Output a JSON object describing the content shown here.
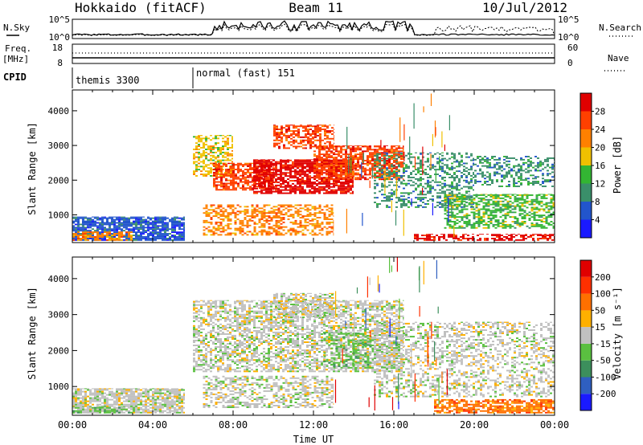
{
  "header": {
    "station": "Hokkaido (fitACF)",
    "beam": "Beam 11",
    "date": "10/Jul/2012"
  },
  "noise_panel": {
    "left_label": "N.Sky",
    "right_label": "N.Search",
    "ticks_left": [
      "10^5",
      "10^0"
    ],
    "ticks_right": [
      "10^5",
      "10^0"
    ]
  },
  "freq_panel": {
    "left_label_line1": "Freq.",
    "left_label_line2": "[MHz]",
    "right_label": "Nave",
    "ticks_left": [
      "18",
      "8"
    ],
    "ticks_right": [
      "60",
      "0"
    ]
  },
  "cpid_panel": {
    "label": "CPID",
    "segments": [
      {
        "name": "themis 3300",
        "start_hour": 0
      },
      {
        "name": "normal (fast) 151",
        "start_hour": 6
      }
    ]
  },
  "colors": {
    "power": [
      "#1a1aff",
      "#2255cc",
      "#3a8f6a",
      "#33b533",
      "#f0c000",
      "#ff8000",
      "#ff4000",
      "#e00000"
    ],
    "velocity": [
      "#1a1aff",
      "#2f5fc0",
      "#3c8f5c",
      "#5ac040",
      "#c0c0c0",
      "#ffb000",
      "#ff7000",
      "#ff3000",
      "#e00000"
    ]
  },
  "chart_data": [
    {
      "type": "heatmap",
      "name": "power",
      "ylabel": "Slant Range [km]",
      "xlabel": "",
      "xlim": [
        0,
        24
      ],
      "ylim": [
        200,
        4600
      ],
      "yticks": [
        1000,
        2000,
        3000,
        4000
      ],
      "xticks": [
        "00:00",
        "04:00",
        "08:00",
        "12:00",
        "16:00",
        "20:00",
        "00:00"
      ],
      "colorbar_label": "Power [dB]",
      "colorbar_ticks": [
        "4",
        "8",
        "12",
        "16",
        "20",
        "24",
        "28"
      ],
      "regions": [
        {
          "t0": 0.0,
          "t1": 5.6,
          "r0": 250,
          "r1": 950,
          "level": 1,
          "density": 0.8
        },
        {
          "t0": 0.0,
          "t1": 3.0,
          "r0": 250,
          "r1": 520,
          "level": 5,
          "density": 0.6
        },
        {
          "t0": 6.0,
          "t1": 8.0,
          "r0": 2100,
          "r1": 3300,
          "level": 4,
          "density": 0.5
        },
        {
          "t0": 7.0,
          "t1": 10.0,
          "r0": 1700,
          "r1": 2500,
          "level": 6,
          "density": 0.7
        },
        {
          "t0": 9.0,
          "t1": 14.0,
          "r0": 1600,
          "r1": 2600,
          "level": 7,
          "density": 0.8
        },
        {
          "t0": 12.0,
          "t1": 16.5,
          "r0": 2000,
          "r1": 3000,
          "level": 6,
          "density": 0.7
        },
        {
          "t0": 10.0,
          "t1": 13.0,
          "r0": 2900,
          "r1": 3600,
          "level": 6,
          "density": 0.6
        },
        {
          "t0": 6.5,
          "t1": 13.0,
          "r0": 400,
          "r1": 1300,
          "level": 5,
          "density": 0.5
        },
        {
          "t0": 15.0,
          "t1": 20.0,
          "r0": 1200,
          "r1": 2800,
          "level": 2,
          "density": 0.4
        },
        {
          "t0": 18.5,
          "t1": 24.0,
          "r0": 600,
          "r1": 1600,
          "level": 3,
          "density": 0.6
        },
        {
          "t0": 17.0,
          "t1": 24.0,
          "r0": 250,
          "r1": 450,
          "level": 7,
          "density": 0.6
        },
        {
          "t0": 20.0,
          "t1": 24.0,
          "r0": 1800,
          "r1": 2700,
          "level": 2,
          "density": 0.4
        }
      ]
    },
    {
      "type": "heatmap",
      "name": "velocity",
      "ylabel": "Slant Range [km]",
      "xlabel": "Time UT",
      "xlim": [
        0,
        24
      ],
      "ylim": [
        200,
        4600
      ],
      "yticks": [
        1000,
        2000,
        3000,
        4000
      ],
      "xticks": [
        "00:00",
        "04:00",
        "08:00",
        "12:00",
        "16:00",
        "20:00",
        "00:00"
      ],
      "colorbar_label": "Velocity [m s⁻¹]",
      "colorbar_ticks": [
        "200",
        "100",
        "50",
        "15",
        "-15",
        "-50",
        "-100",
        "-200"
      ],
      "regions": [
        {
          "t0": 0.0,
          "t1": 5.6,
          "r0": 250,
          "r1": 950,
          "level": 4,
          "density": 0.8
        },
        {
          "t0": 0.0,
          "t1": 3.0,
          "r0": 250,
          "r1": 450,
          "level": 3,
          "density": 0.5
        },
        {
          "t0": 6.0,
          "t1": 16.5,
          "r0": 1400,
          "r1": 3400,
          "level": 4,
          "density": 0.6
        },
        {
          "t0": 10.0,
          "t1": 13.0,
          "r0": 2900,
          "r1": 3600,
          "level": 4,
          "density": 0.6
        },
        {
          "t0": 6.5,
          "t1": 13.0,
          "r0": 400,
          "r1": 1300,
          "level": 4,
          "density": 0.5
        },
        {
          "t0": 12.5,
          "t1": 15.0,
          "r0": 1500,
          "r1": 2500,
          "level": 3,
          "density": 0.4
        },
        {
          "t0": 15.0,
          "t1": 24.0,
          "r0": 700,
          "r1": 2800,
          "level": 4,
          "density": 0.4
        },
        {
          "t0": 18.0,
          "t1": 24.0,
          "r0": 250,
          "r1": 650,
          "level": 6,
          "density": 0.7
        }
      ]
    }
  ]
}
